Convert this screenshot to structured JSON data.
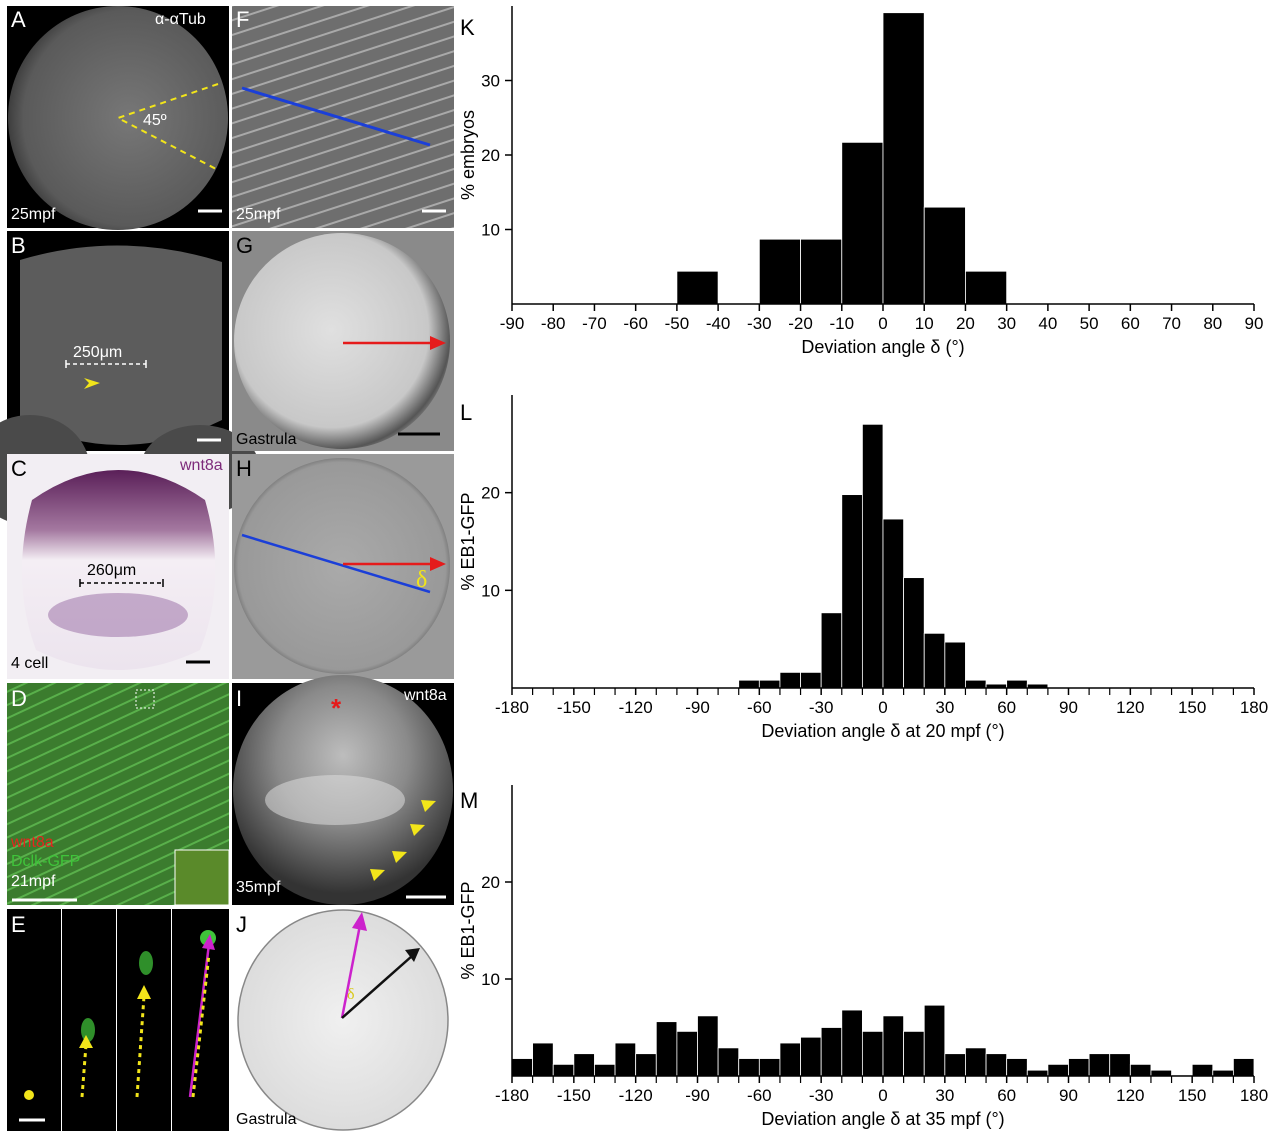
{
  "colors": {
    "bar": "#000000",
    "arrow_red": "#e51b1b",
    "line_blue": "#1b3fd8",
    "arrow_magenta": "#cc22cc",
    "dash_yellow": "#f2e51a",
    "wnt8a_purple": "#7d2a7a",
    "wnt8a_red": "#e5251f",
    "gfp_green": "#3fc43a"
  },
  "panels": {
    "A": {
      "letter": "A",
      "stain": "α-αTub",
      "angle": "45º",
      "stage": "25mpf"
    },
    "B": {
      "letter": "B",
      "scale": "250μm"
    },
    "C": {
      "letter": "C",
      "gene": "wnt8a",
      "scale": "260μm",
      "stage": "4 cell"
    },
    "D": {
      "letter": "D",
      "label1": "wnt8a",
      "label2": "Dclk-GFP",
      "stage": "21mpf"
    },
    "E": {
      "letter": "E"
    },
    "F": {
      "letter": "F",
      "stage": "25mpf"
    },
    "G": {
      "letter": "G",
      "stage": "Gastrula"
    },
    "H": {
      "letter": "H",
      "delta": "δ"
    },
    "I": {
      "letter": "I",
      "gene": "wnt8a",
      "asterisk": "*",
      "stage": "35mpf"
    },
    "J": {
      "letter": "J",
      "delta": "δ",
      "stage": "Gastrula"
    }
  },
  "chart_data": [
    {
      "panel": "K",
      "type": "bar",
      "xlabel": "Deviation angle δ (°)",
      "ylabel": "% embryos",
      "xlim": [
        -90,
        90
      ],
      "ylim": [
        0,
        40
      ],
      "xticks": [
        -90,
        -80,
        -70,
        -60,
        -50,
        -40,
        -30,
        -20,
        -10,
        0,
        10,
        20,
        30,
        40,
        50,
        60,
        70,
        80,
        90
      ],
      "yticks": [
        10,
        20,
        30
      ],
      "bin_width": 10,
      "bins": [
        {
          "x0": -50,
          "value": 4.4
        },
        {
          "x0": -30,
          "value": 8.7
        },
        {
          "x0": -20,
          "value": 8.7
        },
        {
          "x0": -10,
          "value": 21.7
        },
        {
          "x0": 0,
          "value": 39.1
        },
        {
          "x0": 10,
          "value": 13.0
        },
        {
          "x0": 20,
          "value": 4.4
        }
      ]
    },
    {
      "panel": "L",
      "type": "bar",
      "xlabel": "Deviation angle δ at 20 mpf (°)",
      "ylabel": "% EB1-GFP",
      "xlim": [
        -180,
        180
      ],
      "ylim": [
        0,
        30
      ],
      "xticks": [
        -180,
        -150,
        -120,
        -90,
        -60,
        -30,
        0,
        30,
        60,
        90,
        120,
        150,
        180
      ],
      "yticks": [
        10,
        20
      ],
      "bin_width": 10,
      "bins": [
        {
          "x0": -70,
          "value": 0.8
        },
        {
          "x0": -60,
          "value": 0.8
        },
        {
          "x0": -50,
          "value": 1.6
        },
        {
          "x0": -40,
          "value": 1.6
        },
        {
          "x0": -30,
          "value": 7.7
        },
        {
          "x0": -20,
          "value": 19.8
        },
        {
          "x0": -10,
          "value": 27.0
        },
        {
          "x0": 0,
          "value": 17.3
        },
        {
          "x0": 10,
          "value": 11.3
        },
        {
          "x0": 20,
          "value": 5.6
        },
        {
          "x0": 30,
          "value": 4.7
        },
        {
          "x0": 40,
          "value": 0.8
        },
        {
          "x0": 50,
          "value": 0.4
        },
        {
          "x0": 60,
          "value": 0.8
        },
        {
          "x0": 70,
          "value": 0.4
        }
      ]
    },
    {
      "panel": "M",
      "type": "bar",
      "xlabel": "Deviation angle δ at 35 mpf (°)",
      "ylabel": "% EB1-GFP",
      "xlim": [
        -180,
        180
      ],
      "ylim": [
        0,
        30
      ],
      "xticks": [
        -180,
        -150,
        -120,
        -90,
        -60,
        -30,
        0,
        30,
        60,
        90,
        120,
        150,
        180
      ],
      "yticks": [
        10,
        20
      ],
      "bin_width": 10,
      "bins": [
        {
          "x0": -180,
          "value": 1.8
        },
        {
          "x0": -170,
          "value": 3.4
        },
        {
          "x0": -160,
          "value": 1.2
        },
        {
          "x0": -150,
          "value": 2.3
        },
        {
          "x0": -140,
          "value": 1.2
        },
        {
          "x0": -130,
          "value": 3.4
        },
        {
          "x0": -120,
          "value": 2.3
        },
        {
          "x0": -110,
          "value": 5.6
        },
        {
          "x0": -100,
          "value": 4.6
        },
        {
          "x0": -90,
          "value": 6.2
        },
        {
          "x0": -80,
          "value": 2.9
        },
        {
          "x0": -70,
          "value": 1.8
        },
        {
          "x0": -60,
          "value": 1.8
        },
        {
          "x0": -50,
          "value": 3.4
        },
        {
          "x0": -40,
          "value": 4.0
        },
        {
          "x0": -30,
          "value": 5.0
        },
        {
          "x0": -20,
          "value": 6.8
        },
        {
          "x0": -10,
          "value": 4.6
        },
        {
          "x0": 0,
          "value": 6.2
        },
        {
          "x0": 10,
          "value": 4.6
        },
        {
          "x0": 20,
          "value": 7.3
        },
        {
          "x0": 30,
          "value": 2.3
        },
        {
          "x0": 40,
          "value": 2.9
        },
        {
          "x0": 50,
          "value": 2.3
        },
        {
          "x0": 60,
          "value": 1.8
        },
        {
          "x0": 70,
          "value": 0.6
        },
        {
          "x0": 80,
          "value": 1.2
        },
        {
          "x0": 90,
          "value": 1.8
        },
        {
          "x0": 100,
          "value": 2.3
        },
        {
          "x0": 110,
          "value": 2.3
        },
        {
          "x0": 120,
          "value": 1.2
        },
        {
          "x0": 130,
          "value": 0.6
        },
        {
          "x0": 140,
          "value": 0.1
        },
        {
          "x0": 150,
          "value": 1.2
        },
        {
          "x0": 160,
          "value": 0.6
        },
        {
          "x0": 170,
          "value": 1.8
        }
      ]
    }
  ]
}
